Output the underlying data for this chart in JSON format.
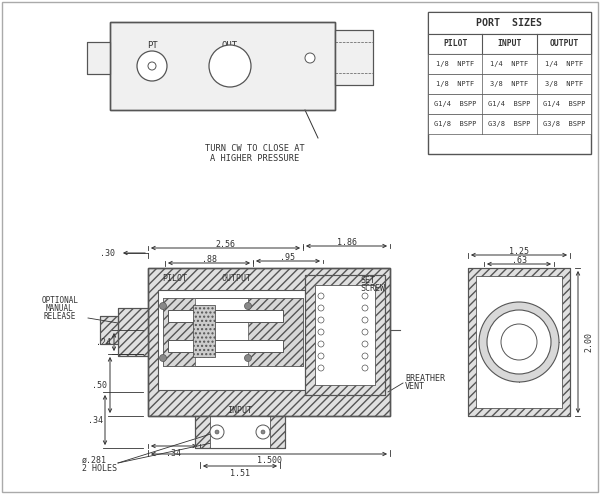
{
  "bg_color": "#ffffff",
  "line_color": "#555555",
  "text_color": "#333333",
  "dim_color": "#333333",
  "port_sizes_title": "PORT  SIZES",
  "port_headers": [
    "PILOT",
    "INPUT",
    "OUTPUT"
  ],
  "port_data": [
    [
      "1/8  NPTF",
      "1/4  NPTF",
      "1/4  NPTF"
    ],
    [
      "1/8  NPTF",
      "3/8  NPTF",
      "3/8  NPTF"
    ],
    [
      "G1/4  BSPP",
      "G1/4  BSPP",
      "G1/4  BSPP"
    ],
    [
      "G1/8  BSPP",
      "G3/8  BSPP",
      "G3/8  BSPP"
    ]
  ]
}
